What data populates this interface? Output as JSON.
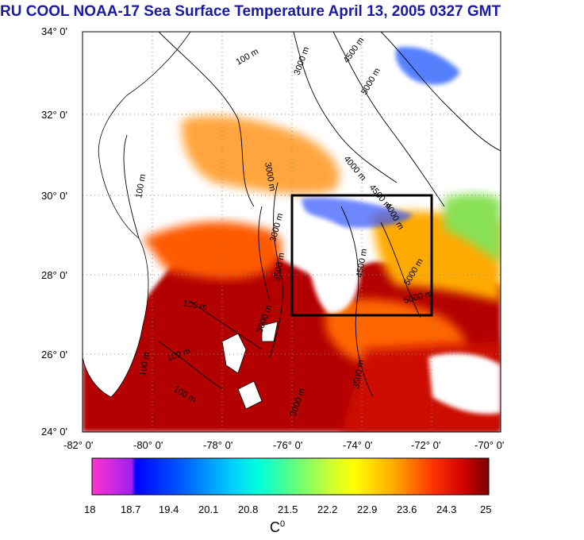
{
  "title": "RU COOL  NOAA-17 Sea Surface Temperature April 13, 2005 0327 GMT",
  "map": {
    "lat_labels": [
      "34° 0'",
      "32° 0'",
      "30° 0'",
      "28° 0'",
      "26° 0'",
      "24° 0'"
    ],
    "lon_labels": [
      "-82° 0'",
      "-80° 0'",
      "-78° 0'",
      "-76° 0'",
      "-74° 0'",
      "-72° 0'",
      "-70° 0'"
    ],
    "lat_range": [
      24,
      34
    ],
    "lon_range": [
      -82,
      -70
    ],
    "grid": "dotted",
    "contour_labels": [
      "100 m",
      "100 m",
      "3000 m",
      "4500 m",
      "5000 m",
      "4000 m",
      "4500 m",
      "4000 m",
      "3000 m",
      "3000 m",
      "3500 m",
      "4500 m",
      "5000 m",
      "5000 m",
      "100 m",
      "100 m",
      "100 m",
      "100 m",
      "3000 m",
      "3500 m",
      "3000 m"
    ],
    "study_box": {
      "lon": [
        -76,
        -72
      ],
      "lat": [
        27,
        30
      ]
    }
  },
  "colorbar": {
    "ticks": [
      "18",
      "18.7",
      "19.4",
      "20.1",
      "20.8",
      "21.5",
      "22.2",
      "22.9",
      "23.6",
      "24.3",
      "25"
    ],
    "range": [
      18,
      25
    ],
    "unit": "C",
    "unit_sup": "0"
  },
  "colors": {
    "title": "#1a1aa6",
    "land": "#ffffff",
    "box": "#000000"
  }
}
